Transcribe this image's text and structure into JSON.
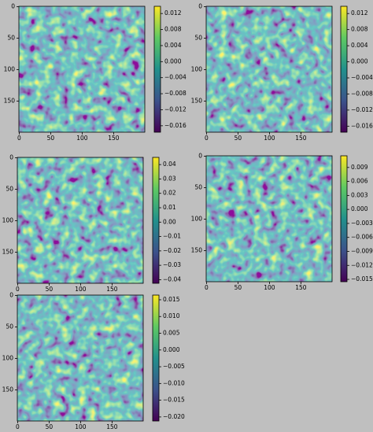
{
  "chart_data": [
    {
      "type": "image",
      "xlim": [
        -0.5,
        199.5
      ],
      "ylim": [
        199.5,
        -0.5
      ],
      "xticks": [
        0,
        50,
        100,
        150
      ],
      "yticks": [
        0,
        50,
        100,
        150
      ],
      "clim": [
        -0.0176,
        0.0138
      ],
      "cticks": [
        0.012,
        0.008,
        0.004,
        {
          "value": 0,
          "label": "0.000"
        },
        {
          "value": -0.004,
          "label": "−0.004"
        },
        {
          "value": -0.008,
          "label": "−0.008"
        },
        {
          "value": -0.012,
          "label": "−0.012"
        },
        {
          "value": -0.016,
          "label": "−0.016"
        }
      ]
    },
    {
      "type": "image",
      "xlim": [
        -0.5,
        199.5
      ],
      "ylim": [
        199.5,
        -0.5
      ],
      "xticks": [
        0,
        50,
        100,
        150
      ],
      "yticks": [
        0,
        50,
        100,
        150
      ],
      "clim": [
        -0.0175,
        0.0138
      ],
      "cticks": [
        0.012,
        0.008,
        0.004,
        {
          "value": 0,
          "label": "0.000"
        },
        {
          "value": -0.004,
          "label": "−0.004"
        },
        {
          "value": -0.008,
          "label": "−0.008"
        },
        {
          "value": -0.012,
          "label": "−0.012"
        },
        {
          "value": -0.016,
          "label": "−0.016"
        }
      ]
    },
    {
      "type": "image",
      "xlim": [
        -0.5,
        199.5
      ],
      "ylim": [
        199.5,
        -0.5
      ],
      "xticks": [
        0,
        50,
        100,
        150
      ],
      "yticks": [
        0,
        50,
        100,
        150
      ],
      "clim": [
        -0.0425,
        0.045
      ],
      "cticks": [
        0.04,
        0.03,
        0.02,
        0.01,
        {
          "value": 0,
          "label": "0.00"
        },
        {
          "value": -0.01,
          "label": "−0.01"
        },
        {
          "value": -0.02,
          "label": "−0.02"
        },
        {
          "value": -0.03,
          "label": "−0.03"
        },
        {
          "value": -0.04,
          "label": "−0.04"
        }
      ]
    },
    {
      "type": "image",
      "xlim": [
        -0.5,
        199.5
      ],
      "ylim": [
        199.5,
        -0.5
      ],
      "xticks": [
        0,
        50,
        100,
        150
      ],
      "yticks": [
        0,
        50,
        100,
        150
      ],
      "clim": [
        -0.0155,
        0.0115
      ],
      "cticks": [
        0.009,
        0.006,
        0.003,
        {
          "value": 0,
          "label": "0.000"
        },
        {
          "value": -0.003,
          "label": "−0.003"
        },
        {
          "value": -0.006,
          "label": "−0.006"
        },
        {
          "value": -0.009,
          "label": "−0.009"
        },
        {
          "value": -0.012,
          "label": "−0.012"
        },
        {
          "value": -0.015,
          "label": "−0.015"
        }
      ]
    },
    {
      "type": "image",
      "xlim": [
        -0.5,
        199.5
      ],
      "ylim": [
        199.5,
        -0.5
      ],
      "xticks": [
        0,
        50,
        100,
        150
      ],
      "yticks": [
        0,
        50,
        100,
        150
      ],
      "clim": [
        -0.0212,
        0.0164
      ],
      "cticks": [
        0.015,
        {
          "value": 0.01,
          "label": "0.010"
        },
        0.005,
        {
          "value": 0,
          "label": "0.000"
        },
        {
          "value": -0.005,
          "label": "−0.005"
        },
        {
          "value": -0.01,
          "label": "−0.010"
        },
        {
          "value": -0.015,
          "label": "−0.015"
        },
        {
          "value": -0.02,
          "label": "−0.020"
        }
      ]
    }
  ]
}
